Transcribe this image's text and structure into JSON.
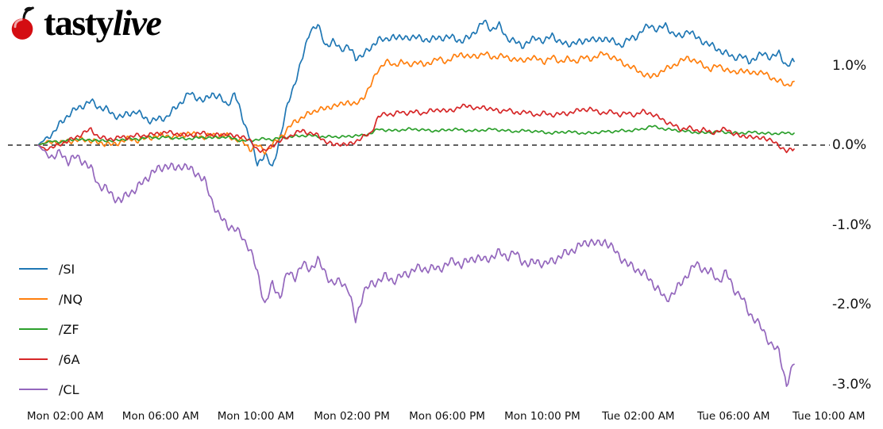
{
  "brand": {
    "name": "tastylive",
    "word_tasty": "tasty",
    "word_live": "live",
    "cherry_color": "#d40d12",
    "text_color": "#000000"
  },
  "chart_data": {
    "type": "line",
    "title": "",
    "xlabel": "",
    "ylabel": "",
    "grid": false,
    "x_tick_labels": [
      "Mon 02:00 AM",
      "Mon 06:00 AM",
      "Mon 10:00 AM",
      "Mon 02:00 PM",
      "Mon 06:00 PM",
      "Mon 10:00 PM",
      "Tue 02:00 AM",
      "Tue 06:00 AM",
      "Tue 10:00 AM"
    ],
    "x_tick_positions": [
      0.036,
      0.162,
      0.288,
      0.415,
      0.541,
      0.667,
      0.794,
      0.92,
      1.046
    ],
    "y_tick_labels": [
      "1.0%",
      "0.0%",
      "-1.0%",
      "-2.0%",
      "-3.0%"
    ],
    "y_tick_values": [
      1.0,
      0.0,
      -1.0,
      -2.0,
      -3.0
    ],
    "ylim": [
      -3.35,
      1.75
    ],
    "unit": "percent",
    "zero_reference_line": {
      "value": 0.0,
      "style": "dashed",
      "color": "#000000"
    },
    "legend": {
      "position": "lower-left",
      "entries": [
        "/SI",
        "/NQ",
        "/ZF",
        "/6A",
        "/CL"
      ]
    },
    "series": [
      {
        "name": "/SI",
        "color": "#1f77b4",
        "values": [
          0.0,
          0.08,
          0.15,
          0.28,
          0.38,
          0.45,
          0.5,
          0.55,
          0.48,
          0.45,
          0.38,
          0.35,
          0.4,
          0.42,
          0.35,
          0.3,
          0.33,
          0.35,
          0.45,
          0.55,
          0.65,
          0.6,
          0.55,
          0.65,
          0.6,
          0.5,
          0.65,
          0.35,
          0.1,
          -0.25,
          -0.1,
          -0.3,
          0.1,
          0.5,
          0.8,
          1.1,
          1.45,
          1.5,
          1.25,
          1.3,
          1.2,
          1.25,
          1.08,
          1.15,
          1.2,
          1.35,
          1.3,
          1.38,
          1.33,
          1.36,
          1.35,
          1.33,
          1.32,
          1.35,
          1.35,
          1.35,
          1.3,
          1.35,
          1.45,
          1.55,
          1.45,
          1.5,
          1.35,
          1.3,
          1.25,
          1.3,
          1.35,
          1.3,
          1.38,
          1.3,
          1.25,
          1.3,
          1.28,
          1.35,
          1.3,
          1.35,
          1.3,
          1.25,
          1.32,
          1.35,
          1.45,
          1.5,
          1.45,
          1.5,
          1.4,
          1.35,
          1.45,
          1.35,
          1.3,
          1.25,
          1.2,
          1.15,
          1.1,
          1.12,
          1.05,
          1.1,
          1.15,
          1.1,
          1.15,
          1.0,
          1.05
        ]
      },
      {
        "name": "/NQ",
        "color": "#ff7f0e",
        "values": [
          0.0,
          0.03,
          0.05,
          0.02,
          0.06,
          0.05,
          0.08,
          0.05,
          0.03,
          0.02,
          0.0,
          0.05,
          0.08,
          0.06,
          0.08,
          0.1,
          0.12,
          0.12,
          0.1,
          0.13,
          0.15,
          0.12,
          0.1,
          0.13,
          0.12,
          0.12,
          0.08,
          0.05,
          -0.05,
          0.0,
          -0.08,
          0.0,
          0.1,
          0.2,
          0.3,
          0.35,
          0.4,
          0.45,
          0.45,
          0.5,
          0.5,
          0.55,
          0.5,
          0.6,
          0.75,
          0.95,
          1.05,
          1.0,
          1.05,
          1.0,
          1.05,
          1.0,
          1.05,
          1.08,
          1.05,
          1.1,
          1.15,
          1.1,
          1.12,
          1.15,
          1.1,
          1.12,
          1.1,
          1.08,
          1.05,
          1.1,
          1.08,
          1.05,
          1.1,
          1.05,
          1.08,
          1.05,
          1.1,
          1.08,
          1.12,
          1.15,
          1.1,
          1.05,
          1.0,
          0.95,
          0.9,
          0.85,
          0.9,
          0.95,
          1.0,
          1.05,
          1.1,
          1.05,
          1.0,
          0.95,
          1.0,
          0.95,
          0.9,
          0.95,
          0.9,
          0.92,
          0.9,
          0.85,
          0.8,
          0.75,
          0.8
        ]
      },
      {
        "name": "/ZF",
        "color": "#2ca02c",
        "values": [
          0.0,
          0.03,
          0.05,
          0.04,
          0.06,
          0.08,
          0.06,
          0.07,
          0.05,
          0.06,
          0.05,
          0.07,
          0.08,
          0.07,
          0.09,
          0.1,
          0.09,
          0.1,
          0.09,
          0.08,
          0.08,
          0.09,
          0.1,
          0.09,
          0.1,
          0.1,
          0.08,
          0.05,
          0.06,
          0.07,
          0.08,
          0.07,
          0.09,
          0.1,
          0.11,
          0.12,
          0.12,
          0.11,
          0.1,
          0.11,
          0.1,
          0.11,
          0.12,
          0.12,
          0.15,
          0.2,
          0.19,
          0.18,
          0.19,
          0.2,
          0.2,
          0.19,
          0.18,
          0.18,
          0.19,
          0.2,
          0.19,
          0.18,
          0.18,
          0.19,
          0.2,
          0.19,
          0.18,
          0.17,
          0.18,
          0.18,
          0.17,
          0.16,
          0.15,
          0.16,
          0.17,
          0.16,
          0.15,
          0.15,
          0.16,
          0.17,
          0.17,
          0.18,
          0.18,
          0.19,
          0.2,
          0.24,
          0.22,
          0.2,
          0.19,
          0.18,
          0.17,
          0.16,
          0.15,
          0.16,
          0.17,
          0.16,
          0.15,
          0.15,
          0.16,
          0.16,
          0.15,
          0.14,
          0.15,
          0.15,
          0.15
        ]
      },
      {
        "name": "/6A",
        "color": "#d62728",
        "values": [
          0.0,
          -0.05,
          -0.03,
          0.02,
          0.05,
          0.1,
          0.15,
          0.2,
          0.1,
          0.08,
          0.08,
          0.1,
          0.1,
          0.12,
          0.12,
          0.13,
          0.15,
          0.16,
          0.15,
          0.13,
          0.12,
          0.14,
          0.15,
          0.13,
          0.12,
          0.15,
          0.1,
          0.12,
          0.05,
          -0.05,
          -0.08,
          0.0,
          0.05,
          0.1,
          0.15,
          0.18,
          0.15,
          0.12,
          0.05,
          0.0,
          0.02,
          0.0,
          0.05,
          0.1,
          0.15,
          0.35,
          0.4,
          0.38,
          0.42,
          0.4,
          0.42,
          0.4,
          0.43,
          0.45,
          0.42,
          0.45,
          0.48,
          0.5,
          0.45,
          0.48,
          0.45,
          0.42,
          0.45,
          0.4,
          0.42,
          0.4,
          0.38,
          0.4,
          0.38,
          0.39,
          0.4,
          0.42,
          0.45,
          0.45,
          0.42,
          0.4,
          0.42,
          0.38,
          0.4,
          0.38,
          0.42,
          0.4,
          0.35,
          0.3,
          0.25,
          0.2,
          0.22,
          0.18,
          0.2,
          0.15,
          0.18,
          0.2,
          0.15,
          0.1,
          0.12,
          0.08,
          0.1,
          0.05,
          0.0,
          -0.08,
          -0.05
        ]
      },
      {
        "name": "/CL",
        "color": "#9467bd",
        "values": [
          0.0,
          -0.1,
          -0.15,
          -0.1,
          -0.2,
          -0.15,
          -0.2,
          -0.3,
          -0.5,
          -0.55,
          -0.65,
          -0.7,
          -0.6,
          -0.55,
          -0.45,
          -0.35,
          -0.3,
          -0.25,
          -0.3,
          -0.25,
          -0.3,
          -0.35,
          -0.45,
          -0.7,
          -0.9,
          -1.0,
          -1.05,
          -1.15,
          -1.3,
          -1.6,
          -2.0,
          -1.75,
          -1.9,
          -1.6,
          -1.65,
          -1.5,
          -1.55,
          -1.45,
          -1.6,
          -1.75,
          -1.7,
          -1.8,
          -2.2,
          -1.85,
          -1.75,
          -1.7,
          -1.65,
          -1.7,
          -1.65,
          -1.6,
          -1.55,
          -1.55,
          -1.55,
          -1.55,
          -1.5,
          -1.45,
          -1.5,
          -1.45,
          -1.4,
          -1.45,
          -1.4,
          -1.35,
          -1.4,
          -1.35,
          -1.45,
          -1.5,
          -1.45,
          -1.5,
          -1.45,
          -1.4,
          -1.35,
          -1.3,
          -1.25,
          -1.2,
          -1.25,
          -1.2,
          -1.3,
          -1.4,
          -1.5,
          -1.55,
          -1.6,
          -1.7,
          -1.8,
          -1.95,
          -1.85,
          -1.75,
          -1.6,
          -1.5,
          -1.55,
          -1.6,
          -1.7,
          -1.6,
          -1.8,
          -1.9,
          -2.1,
          -2.2,
          -2.35,
          -2.5,
          -2.6,
          -3.0,
          -2.75
        ]
      }
    ]
  }
}
